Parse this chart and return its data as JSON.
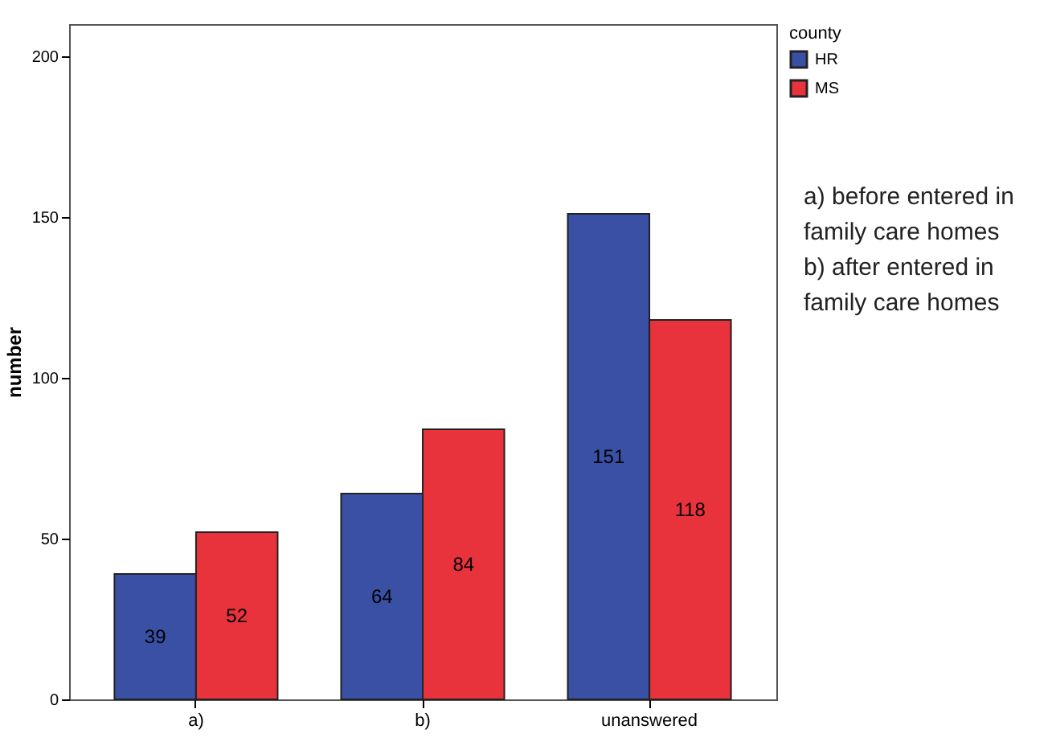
{
  "chart_data": {
    "type": "bar",
    "ylabel": "number",
    "legend_title": "county",
    "categories": [
      "a)",
      "b)",
      "unanswered"
    ],
    "series": [
      {
        "name": "HR",
        "color": "#3a50a4",
        "values": [
          39,
          64,
          151
        ]
      },
      {
        "name": "MS",
        "color": "#e8323c",
        "values": [
          52,
          84,
          118
        ]
      }
    ],
    "ylim": [
      0,
      210
    ],
    "yticks": [
      0,
      50,
      100,
      150,
      200
    ],
    "grid": false,
    "legend": "top right",
    "data_labels": true,
    "annotations": [
      "a) before entered in family care homes",
      "b) after entered in family care homes"
    ]
  }
}
